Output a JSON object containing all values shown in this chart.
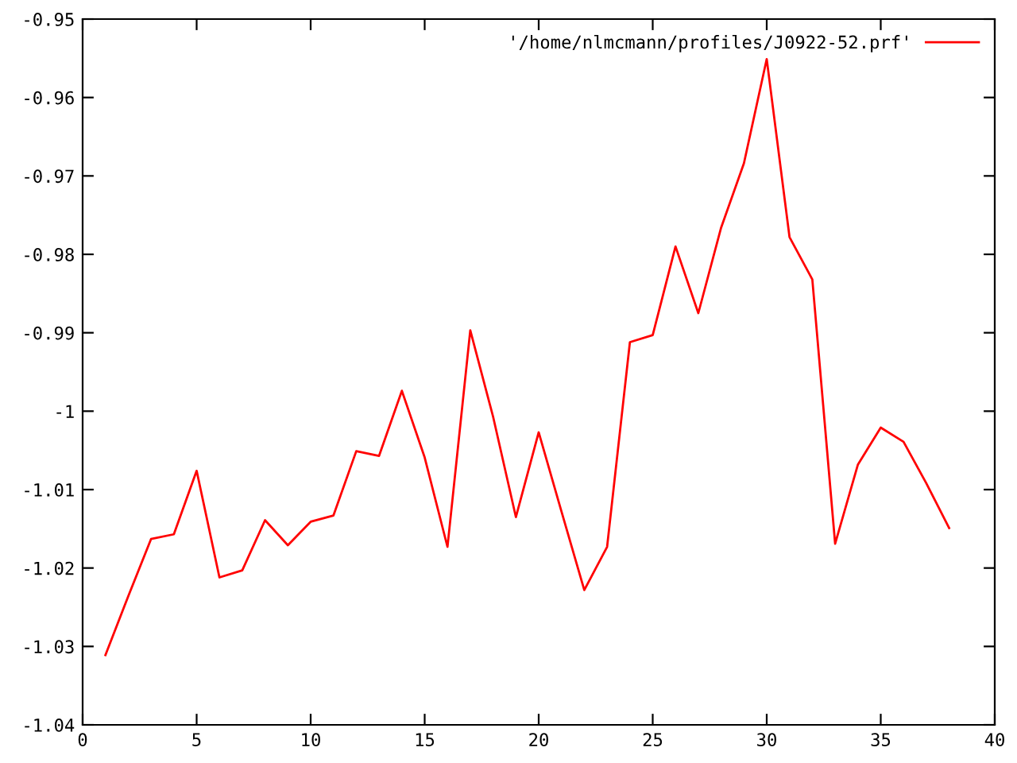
{
  "chart_data": {
    "type": "line",
    "x": [
      1,
      2,
      3,
      4,
      5,
      6,
      7,
      8,
      9,
      10,
      11,
      12,
      13,
      14,
      15,
      16,
      17,
      18,
      19,
      20,
      21,
      22,
      23,
      24,
      25,
      26,
      27,
      28,
      29,
      30,
      31,
      32,
      33,
      34,
      35,
      36,
      37,
      38
    ],
    "series": [
      {
        "name": "'/home/nlmcmann/profiles/J0922-52.prf'",
        "color": "#ff0000",
        "values": [
          -1.0311,
          -1.0236,
          -1.0163,
          -1.0157,
          -1.0076,
          -1.0212,
          -1.0203,
          -1.0139,
          -1.0171,
          -1.0141,
          -1.0133,
          -1.0051,
          -1.0057,
          -0.9974,
          -1.0059,
          -1.0173,
          -0.9897,
          -1.0007,
          -1.0135,
          -1.0027,
          -1.0128,
          -1.0228,
          -1.0173,
          -0.9912,
          -0.9903,
          -0.979,
          -0.9875,
          -0.9766,
          -0.9684,
          -0.9551,
          -0.9778,
          -0.9832,
          -1.0169,
          -1.0068,
          -1.0021,
          -1.0039,
          -1.0092,
          -1.0149
        ]
      }
    ],
    "xlim": [
      0,
      40
    ],
    "xticks": [
      0,
      5,
      10,
      15,
      20,
      25,
      30,
      35,
      40
    ],
    "ylim": [
      -1.04,
      -0.95
    ],
    "yticks": [
      -1.04,
      -1.03,
      -1.02,
      -1.01,
      -1,
      -0.99,
      -0.98,
      -0.97,
      -0.96,
      -0.95
    ],
    "grid": false,
    "legend": "top right",
    "marker": "none",
    "line_style": "solid"
  }
}
